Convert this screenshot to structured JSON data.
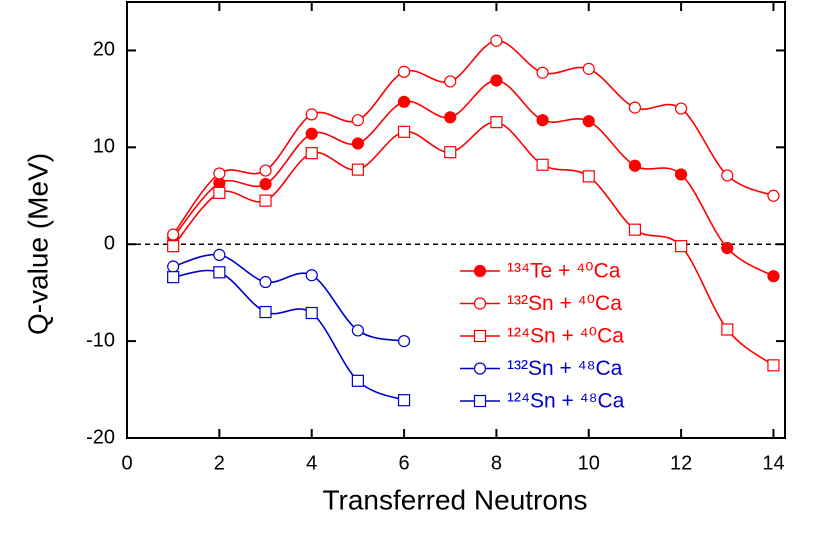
{
  "chart_data": {
    "type": "line",
    "x_label": "Transferred Neutrons",
    "y_label": "Q-value (MeV)",
    "xlim": [
      0,
      14.25
    ],
    "ylim": [
      -20,
      25
    ],
    "xticks": [
      0,
      2,
      4,
      6,
      8,
      10,
      12,
      14
    ],
    "yticks": [
      -20,
      -10,
      0,
      10,
      20
    ],
    "zero_line": true,
    "smooth": true,
    "series": [
      {
        "name": "¹³⁴Te + ⁴⁰Ca",
        "color": "#ff0000",
        "marker": "circle",
        "filled": true,
        "x": [
          1,
          2,
          3,
          4,
          5,
          6,
          7,
          8,
          9,
          10,
          11,
          12,
          13,
          14
        ],
        "values": [
          0.7,
          6.3,
          6.2,
          11.4,
          10.4,
          14.7,
          13.1,
          16.9,
          12.8,
          12.7,
          8.1,
          7.2,
          -0.4,
          -3.3
        ]
      },
      {
        "name": "¹³²Sn + ⁴⁰Ca",
        "color": "#ff0000",
        "marker": "circle",
        "filled": false,
        "x": [
          1,
          2,
          3,
          4,
          5,
          6,
          7,
          8,
          9,
          10,
          11,
          12,
          13,
          14
        ],
        "values": [
          1.0,
          7.3,
          7.6,
          13.4,
          12.8,
          17.8,
          16.8,
          21.0,
          17.7,
          18.1,
          14.1,
          14.0,
          7.1,
          5.0
        ]
      },
      {
        "name": "¹²⁴Sn + ⁴⁰Ca",
        "color": "#ff0000",
        "marker": "square",
        "filled": false,
        "x": [
          1,
          2,
          3,
          4,
          5,
          6,
          7,
          8,
          9,
          10,
          11,
          12,
          13,
          14
        ],
        "values": [
          -0.2,
          5.3,
          4.5,
          9.4,
          7.7,
          11.6,
          9.5,
          12.6,
          8.2,
          7.0,
          1.5,
          -0.2,
          -8.8,
          -12.5
        ]
      },
      {
        "name": "¹³²Sn + ⁴⁸Ca",
        "color": "#0000cc",
        "marker": "circle",
        "filled": false,
        "x": [
          1,
          2,
          3,
          4,
          5,
          6
        ],
        "values": [
          -2.3,
          -1.1,
          -3.9,
          -3.2,
          -8.9,
          -10.0
        ]
      },
      {
        "name": "¹²⁴Sn + ⁴⁸Ca",
        "color": "#0000cc",
        "marker": "square",
        "filled": false,
        "x": [
          1,
          2,
          3,
          4,
          5,
          6
        ],
        "values": [
          -3.4,
          -2.9,
          -7.0,
          -7.1,
          -14.1,
          -16.1
        ]
      }
    ]
  }
}
